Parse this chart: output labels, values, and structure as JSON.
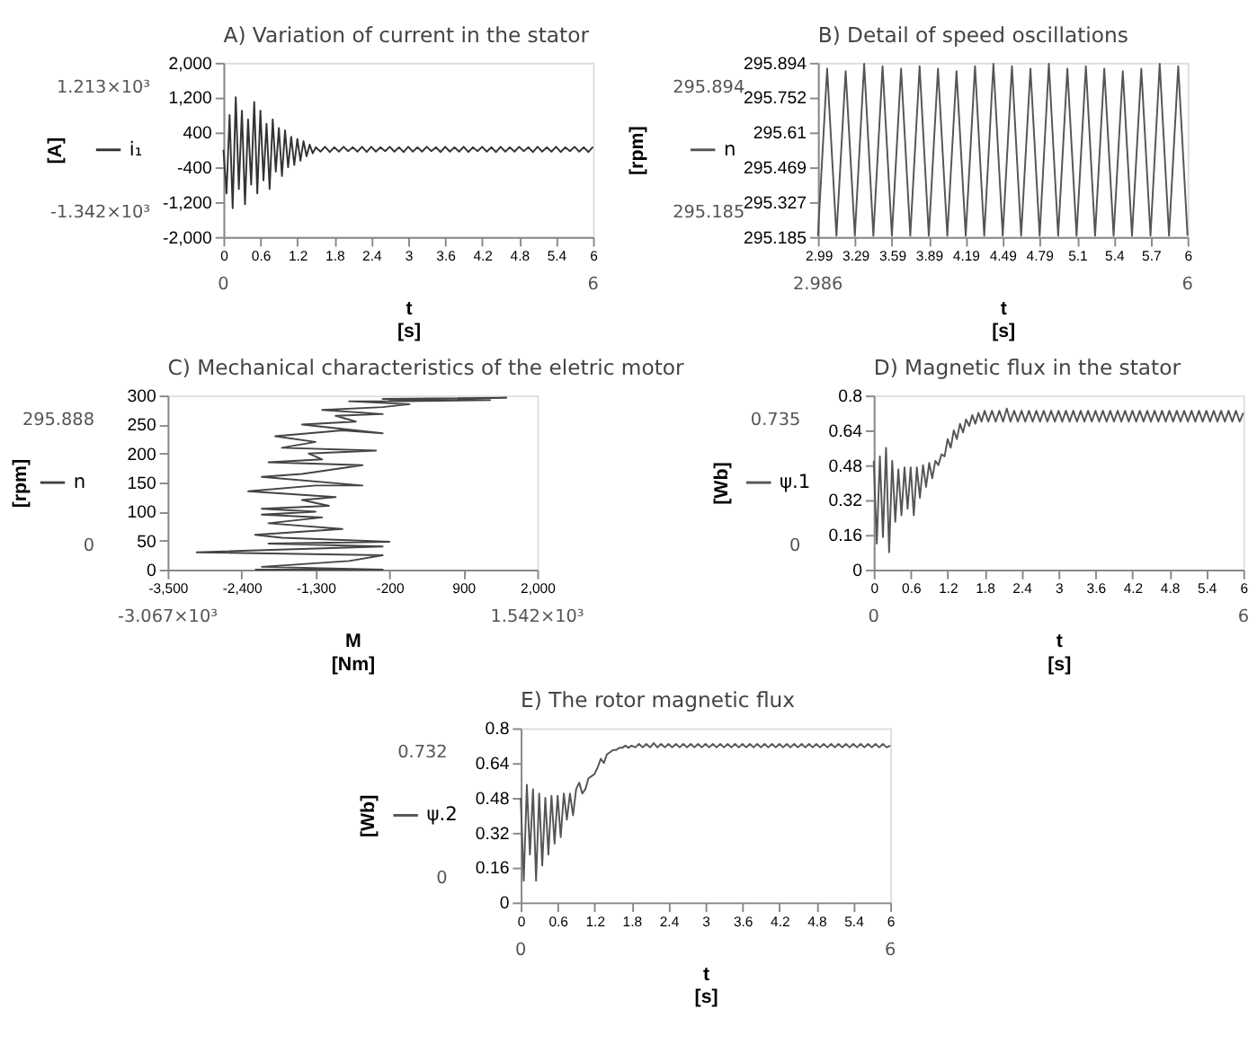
{
  "chart_data": [
    {
      "type": "line",
      "title": "A) Variation of current in the stator",
      "xlabel": "t\n[s]",
      "ylabel": "[A]",
      "legend": "left",
      "grid": false,
      "xlim": [
        0,
        6
      ],
      "xticks": [
        0,
        0.6,
        1.2,
        1.8,
        2.4,
        3,
        3.6,
        4.2,
        4.8,
        5.4,
        6
      ],
      "ylim": [
        -2000,
        2000
      ],
      "yticks": [
        {
          "value": -2000,
          "label": "-2,000"
        },
        {
          "value": -1200,
          "label": "-1,200"
        },
        -400,
        400,
        {
          "value": 1200,
          "label": "1,200"
        },
        {
          "value": 2000,
          "label": "2,000"
        }
      ],
      "x": [
        0,
        0.05,
        0.1,
        0.15,
        0.2,
        0.25,
        0.3,
        0.35,
        0.4,
        0.45,
        0.5,
        0.55,
        0.6,
        0.65,
        0.7,
        0.75,
        0.8,
        0.85,
        0.9,
        0.95,
        1.0,
        1.05,
        1.1,
        1.15,
        1.2,
        1.25,
        1.3,
        1.35,
        1.4,
        1.45,
        1.5,
        1.575,
        1.65,
        1.725,
        1.8,
        1.875,
        1.95,
        2.025,
        2.1,
        2.175,
        2.25,
        2.325,
        2.4,
        2.475,
        2.55,
        2.625,
        2.7,
        2.775,
        2.85,
        2.925,
        3.0,
        3.075,
        3.15,
        3.225,
        3.3,
        3.375,
        3.45,
        3.525,
        3.6,
        3.675,
        3.75,
        3.825,
        3.9,
        3.975,
        4.05,
        4.125,
        4.2,
        4.275,
        4.35,
        4.425,
        4.5,
        4.575,
        4.65,
        4.725,
        4.8,
        4.875,
        4.95,
        5.025,
        5.1,
        5.175,
        5.25,
        5.325,
        5.4,
        5.475,
        5.55,
        5.625,
        5.7,
        5.775,
        5.85,
        5.925,
        6.0
      ],
      "series": [
        {
          "name": "i₁",
          "color": "#333333",
          "values": [
            0,
            -1000,
            800,
            -1340,
            1210,
            -900,
            900,
            -1250,
            700,
            -800,
            1100,
            -1000,
            900,
            -700,
            600,
            -900,
            700,
            -500,
            500,
            -600,
            450,
            -400,
            300,
            -350,
            250,
            -250,
            200,
            -150,
            120,
            -80,
            60,
            -40,
            70,
            -50,
            60,
            -40,
            70,
            -30,
            60,
            -40,
            70,
            -50,
            70,
            -40,
            60,
            -30,
            70,
            -40,
            60,
            -50,
            70,
            -40,
            60,
            -40,
            70,
            -30,
            60,
            -50,
            70,
            -40,
            60,
            -40,
            70,
            -50,
            60,
            -30,
            70,
            -40,
            60,
            -50,
            70,
            -40,
            60,
            -40,
            70,
            -30,
            60,
            -50,
            70,
            -40,
            60,
            -40,
            70,
            -50,
            60,
            -30,
            70,
            -40,
            60,
            -50,
            70
          ]
        }
      ],
      "annotations": [
        "1.213×10³",
        "-1.342×10³",
        "0",
        "6"
      ]
    },
    {
      "type": "line",
      "title": "B) Detail of speed oscillations",
      "xlabel": "t\n[s]",
      "ylabel": "[rpm]",
      "legend": "left",
      "grid": false,
      "xlim": [
        2.986,
        6
      ],
      "xticks": [
        2.99,
        3.29,
        3.59,
        3.89,
        4.19,
        4.49,
        4.79,
        5.1,
        5.4,
        5.7,
        6
      ],
      "ylim": [
        295.185,
        295.894
      ],
      "yticks": [
        295.185,
        295.327,
        295.469,
        295.61,
        295.752,
        295.894
      ],
      "x": [
        2.986,
        3.061,
        3.137,
        3.212,
        3.287,
        3.363,
        3.438,
        3.513,
        3.589,
        3.664,
        3.739,
        3.815,
        3.89,
        3.965,
        4.041,
        4.116,
        4.191,
        4.267,
        4.342,
        4.417,
        4.493,
        4.568,
        4.643,
        4.719,
        4.794,
        4.869,
        4.945,
        5.02,
        5.095,
        5.171,
        5.246,
        5.321,
        5.397,
        5.472,
        5.547,
        5.623,
        5.698,
        5.773,
        5.849,
        5.924,
        6.0
      ],
      "series": [
        {
          "name": "n",
          "color": "#555555",
          "values": [
            295.19,
            295.87,
            295.19,
            295.86,
            295.19,
            295.89,
            295.19,
            295.88,
            295.19,
            295.87,
            295.19,
            295.88,
            295.19,
            295.87,
            295.19,
            295.86,
            295.19,
            295.88,
            295.19,
            295.89,
            295.19,
            295.88,
            295.19,
            295.87,
            295.19,
            295.89,
            295.19,
            295.87,
            295.19,
            295.88,
            295.19,
            295.87,
            295.19,
            295.86,
            295.19,
            295.87,
            295.19,
            295.89,
            295.19,
            295.88,
            295.19
          ]
        }
      ],
      "annotations": [
        "295.894",
        "295.185",
        "2.986",
        "6"
      ]
    },
    {
      "type": "line",
      "title": "C) Mechanical characteristics of the eletric motor",
      "xlabel": "M\n[Nm]",
      "ylabel": "[rpm]",
      "legend": "left",
      "grid": false,
      "xlim": [
        -3500,
        2000
      ],
      "xticks": [
        {
          "value": -3500,
          "label": "-3,500"
        },
        {
          "value": -2400,
          "label": "-2,400"
        },
        {
          "value": -1300,
          "label": "-1,300"
        },
        -200,
        900,
        {
          "value": 2000,
          "label": "2,000"
        }
      ],
      "ylim": [
        0,
        300
      ],
      "yticks": [
        0,
        50,
        100,
        150,
        200,
        250,
        300
      ],
      "x": [
        -2200,
        -300,
        -2100,
        -800,
        -300,
        -3067,
        -300,
        -2000,
        -200,
        -1800,
        -2200,
        -900,
        -2000,
        -1200,
        -2100,
        -1300,
        -2100,
        -1100,
        -1500,
        -1000,
        -2300,
        -1300,
        -600,
        -2100,
        -1500,
        -600,
        -2000,
        -1200,
        -1400,
        -400,
        -1800,
        -1300,
        -1900,
        -900,
        -300,
        -1500,
        -700,
        -1000,
        -300,
        -1200,
        -300,
        100,
        -800,
        400,
        -200,
        1540,
        -300,
        1300,
        0
      ],
      "series": [
        {
          "name": "n",
          "color": "#444444",
          "values": [
            0,
            0,
            5,
            15,
            25,
            30,
            40,
            45,
            48,
            55,
            60,
            70,
            80,
            90,
            95,
            100,
            105,
            110,
            120,
            125,
            135,
            145,
            145,
            160,
            165,
            180,
            185,
            190,
            200,
            205,
            210,
            220,
            230,
            240,
            235,
            250,
            255,
            265,
            268,
            275,
            280,
            285,
            290,
            290,
            292,
            296,
            294,
            292,
            290
          ]
        }
      ],
      "annotations": [
        "295.888",
        "0",
        "-3.067×10³",
        "1.542×10³"
      ]
    },
    {
      "type": "line",
      "title": "D) Magnetic flux in the stator",
      "xlabel": "t\n[s]",
      "ylabel": "[Wb]",
      "legend": "left",
      "grid": false,
      "xlim": [
        0,
        6
      ],
      "xticks": [
        0,
        0.6,
        1.2,
        1.8,
        2.4,
        3,
        3.6,
        4.2,
        4.8,
        5.4,
        6
      ],
      "ylim": [
        0,
        0.8
      ],
      "yticks": [
        0,
        0.16,
        0.32,
        0.48,
        0.64,
        0.8
      ],
      "x": [
        0,
        0.05,
        0.1,
        0.15,
        0.2,
        0.25,
        0.3,
        0.35,
        0.4,
        0.45,
        0.5,
        0.55,
        0.6,
        0.65,
        0.7,
        0.75,
        0.8,
        0.85,
        0.9,
        0.95,
        1.0,
        1.05,
        1.1,
        1.15,
        1.2,
        1.25,
        1.3,
        1.35,
        1.4,
        1.45,
        1.5,
        1.55,
        1.6,
        1.65,
        1.7,
        1.75,
        1.8,
        1.86,
        1.92,
        1.98,
        2.04,
        2.1,
        2.16,
        2.22,
        2.28,
        2.34,
        2.4,
        2.46,
        2.52,
        2.58,
        2.64,
        2.7,
        2.76,
        2.82,
        2.88,
        2.94,
        3.0,
        3.06,
        3.12,
        3.18,
        3.24,
        3.3,
        3.36,
        3.42,
        3.48,
        3.54,
        3.6,
        3.66,
        3.72,
        3.78,
        3.84,
        3.9,
        3.96,
        4.02,
        4.08,
        4.14,
        4.2,
        4.26,
        4.32,
        4.38,
        4.44,
        4.5,
        4.56,
        4.62,
        4.68,
        4.74,
        4.8,
        4.86,
        4.92,
        4.98,
        5.04,
        5.1,
        5.16,
        5.22,
        5.28,
        5.34,
        5.4,
        5.46,
        5.52,
        5.58,
        5.64,
        5.7,
        5.76,
        5.82,
        5.88,
        5.94,
        6.0
      ],
      "series": [
        {
          "name": "ψ.1",
          "color": "#555555",
          "values": [
            0.5,
            0.12,
            0.52,
            0.15,
            0.56,
            0.08,
            0.5,
            0.22,
            0.46,
            0.25,
            0.47,
            0.28,
            0.47,
            0.25,
            0.47,
            0.33,
            0.48,
            0.38,
            0.49,
            0.42,
            0.5,
            0.48,
            0.53,
            0.52,
            0.6,
            0.56,
            0.64,
            0.6,
            0.67,
            0.63,
            0.69,
            0.66,
            0.71,
            0.67,
            0.72,
            0.68,
            0.73,
            0.68,
            0.73,
            0.68,
            0.73,
            0.68,
            0.74,
            0.68,
            0.73,
            0.68,
            0.73,
            0.68,
            0.73,
            0.68,
            0.73,
            0.68,
            0.73,
            0.68,
            0.73,
            0.68,
            0.73,
            0.68,
            0.73,
            0.68,
            0.73,
            0.68,
            0.73,
            0.68,
            0.73,
            0.68,
            0.73,
            0.68,
            0.73,
            0.68,
            0.73,
            0.68,
            0.73,
            0.68,
            0.73,
            0.68,
            0.73,
            0.68,
            0.73,
            0.68,
            0.73,
            0.68,
            0.73,
            0.68,
            0.73,
            0.68,
            0.73,
            0.68,
            0.73,
            0.68,
            0.73,
            0.68,
            0.73,
            0.68,
            0.73,
            0.68,
            0.73,
            0.68,
            0.73,
            0.68,
            0.73,
            0.68,
            0.73,
            0.68,
            0.73,
            0.68,
            0.72
          ]
        }
      ],
      "annotations": [
        "0.735",
        "0",
        "0",
        "6"
      ]
    },
    {
      "type": "line",
      "title": "E) The rotor magnetic flux",
      "xlabel": "t\n[s]",
      "ylabel": "[Wb]",
      "legend": "left",
      "grid": false,
      "xlim": [
        0,
        6
      ],
      "xticks": [
        0,
        0.6,
        1.2,
        1.8,
        2.4,
        3,
        3.6,
        4.2,
        4.8,
        5.4,
        6
      ],
      "ylim": [
        0,
        0.8
      ],
      "yticks": [
        0,
        0.16,
        0.32,
        0.48,
        0.64,
        0.8
      ],
      "x": [
        0,
        0.05,
        0.1,
        0.15,
        0.2,
        0.25,
        0.3,
        0.35,
        0.4,
        0.45,
        0.5,
        0.55,
        0.6,
        0.65,
        0.7,
        0.75,
        0.8,
        0.85,
        0.9,
        0.95,
        1.0,
        1.05,
        1.1,
        1.15,
        1.2,
        1.25,
        1.3,
        1.35,
        1.4,
        1.45,
        1.5,
        1.55,
        1.6,
        1.65,
        1.7,
        1.75,
        1.8,
        1.86,
        1.92,
        1.98,
        2.04,
        2.1,
        2.16,
        2.22,
        2.28,
        2.34,
        2.4,
        2.46,
        2.52,
        2.58,
        2.64,
        2.7,
        2.76,
        2.82,
        2.88,
        2.94,
        3.0,
        3.06,
        3.12,
        3.18,
        3.24,
        3.3,
        3.36,
        3.42,
        3.48,
        3.54,
        3.6,
        3.66,
        3.72,
        3.78,
        3.84,
        3.9,
        3.96,
        4.02,
        4.08,
        4.14,
        4.2,
        4.26,
        4.32,
        4.38,
        4.44,
        4.5,
        4.56,
        4.62,
        4.68,
        4.74,
        4.8,
        4.86,
        4.92,
        4.98,
        5.04,
        5.1,
        5.16,
        5.22,
        5.28,
        5.34,
        5.4,
        5.46,
        5.52,
        5.58,
        5.64,
        5.7,
        5.76,
        5.82,
        5.88,
        5.94,
        6.0
      ],
      "series": [
        {
          "name": "ψ.2",
          "color": "#555555",
          "values": [
            0.48,
            0.1,
            0.54,
            0.22,
            0.52,
            0.1,
            0.5,
            0.17,
            0.48,
            0.22,
            0.49,
            0.27,
            0.49,
            0.3,
            0.5,
            0.38,
            0.5,
            0.4,
            0.52,
            0.55,
            0.5,
            0.52,
            0.57,
            0.58,
            0.59,
            0.62,
            0.66,
            0.64,
            0.68,
            0.69,
            0.7,
            0.7,
            0.71,
            0.71,
            0.72,
            0.71,
            0.72,
            0.712,
            0.728,
            0.712,
            0.728,
            0.712,
            0.732,
            0.712,
            0.728,
            0.712,
            0.728,
            0.712,
            0.728,
            0.712,
            0.728,
            0.712,
            0.728,
            0.712,
            0.728,
            0.712,
            0.728,
            0.712,
            0.728,
            0.712,
            0.728,
            0.712,
            0.728,
            0.712,
            0.728,
            0.712,
            0.728,
            0.712,
            0.728,
            0.712,
            0.728,
            0.712,
            0.728,
            0.712,
            0.728,
            0.712,
            0.728,
            0.712,
            0.728,
            0.712,
            0.728,
            0.712,
            0.728,
            0.712,
            0.728,
            0.712,
            0.728,
            0.712,
            0.728,
            0.712,
            0.728,
            0.712,
            0.728,
            0.712,
            0.728,
            0.712,
            0.728,
            0.712,
            0.728,
            0.712,
            0.728,
            0.712,
            0.728,
            0.712,
            0.728,
            0.712,
            0.72
          ]
        }
      ],
      "annotations": [
        "0.732",
        "0",
        "0",
        "6"
      ]
    }
  ]
}
